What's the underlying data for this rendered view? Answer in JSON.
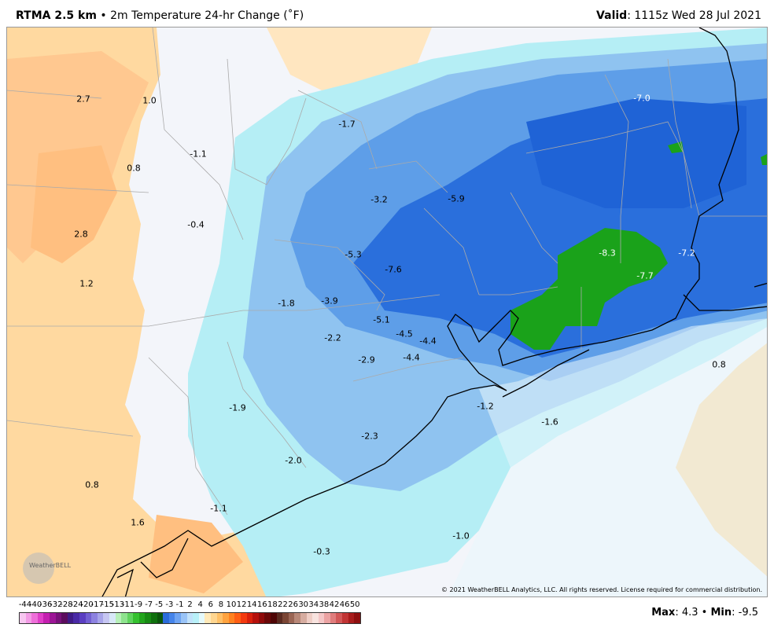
{
  "header": {
    "model": "RTMA 2.5 km",
    "bullet": "•",
    "field": "2m Temperature 24-hr Change (˚F)",
    "valid_label": "Valid",
    "valid_value": "1115z Wed 28 Jul 2021"
  },
  "map": {
    "labels": [
      {
        "text": "2.7",
        "light": false
      },
      {
        "text": "1.0",
        "light": false
      },
      {
        "text": "-1.7",
        "light": false
      },
      {
        "text": "-7.0",
        "light": true
      },
      {
        "text": "-1.1",
        "light": false
      },
      {
        "text": "0.8",
        "light": false
      },
      {
        "text": "-3.2",
        "light": false
      },
      {
        "text": "-5.9",
        "light": false
      },
      {
        "text": "-0.4",
        "light": false
      },
      {
        "text": "2.8",
        "light": false
      },
      {
        "text": "-5.3",
        "light": false
      },
      {
        "text": "-8.3",
        "light": true
      },
      {
        "text": "-7.2",
        "light": true
      },
      {
        "text": "-7.6",
        "light": false
      },
      {
        "text": "-7.7",
        "light": true
      },
      {
        "text": "1.2",
        "light": false
      },
      {
        "text": "-1.8",
        "light": false
      },
      {
        "text": "-3.9",
        "light": false
      },
      {
        "text": "-5.1",
        "light": false
      },
      {
        "text": "-4.5",
        "light": false
      },
      {
        "text": "-4.4",
        "light": false
      },
      {
        "text": "-2.2",
        "light": false
      },
      {
        "text": "-4.4",
        "light": false
      },
      {
        "text": "-2.9",
        "light": false
      },
      {
        "text": "0.8",
        "light": false
      },
      {
        "text": "-1.9",
        "light": false
      },
      {
        "text": "-1.2",
        "light": false
      },
      {
        "text": "-1.6",
        "light": false
      },
      {
        "text": "-2.3",
        "light": false
      },
      {
        "text": "-2.0",
        "light": false
      },
      {
        "text": "0.8",
        "light": false
      },
      {
        "text": "-1.1",
        "light": false
      },
      {
        "text": "1.6",
        "light": false
      },
      {
        "text": "-1.0",
        "light": false
      },
      {
        "text": "-0.3",
        "light": false
      }
    ],
    "logo_text": "WeatherBELL",
    "copyright": "© 2021 WeatherBELL Analytics, LLC. All rights reserved. License required for commercial distribution."
  },
  "colorbar": {
    "ticks": [
      "-44",
      "-40",
      "-36",
      "-32",
      "-28",
      "-24",
      "-20",
      "-17",
      "-15",
      "-13",
      "-11",
      "-9",
      "-7",
      "-5",
      "-3",
      "-1",
      "2",
      "4",
      "6",
      "8",
      "10",
      "12",
      "14",
      "16",
      "18",
      "22",
      "26",
      "30",
      "34",
      "38",
      "42",
      "46",
      "50"
    ],
    "colors": [
      "#f7c6f0",
      "#f39be6",
      "#ee6fd9",
      "#e03fc8",
      "#c41fb0",
      "#9c1596",
      "#78117a",
      "#5c0d5e",
      "#3f1b86",
      "#4a2aa6",
      "#5b3fc2",
      "#7360d3",
      "#8d82e0",
      "#a8a5ea",
      "#c6c6f2",
      "#d8e8f8",
      "#b7f0b8",
      "#8ee38e",
      "#60d35e",
      "#35c12f",
      "#22a51c",
      "#178a13",
      "#0f700d",
      "#0a550a",
      "#2b6cda",
      "#4584ea",
      "#6fa4f2",
      "#9ac4f7",
      "#c2e2fb",
      "#b8f0f8",
      "#e4f9fb",
      "#ffe9b8",
      "#ffd690",
      "#ffc067",
      "#ffa33f",
      "#ff8220",
      "#ff5e14",
      "#f33a0f",
      "#d8200c",
      "#b5100b",
      "#8f0a0a",
      "#6a0808",
      "#4e0606",
      "#5a2a20",
      "#7a4534",
      "#9a6554",
      "#b88878",
      "#d6aca0",
      "#efcec6",
      "#f8e3df",
      "#f4c7c7",
      "#eba3a3",
      "#e07d7d",
      "#d25858",
      "#c13535",
      "#a81c1c",
      "#8e0f0f"
    ],
    "max_label": "Max",
    "max_value": "4.3",
    "min_label": "Min",
    "min_value": "-9.5"
  }
}
